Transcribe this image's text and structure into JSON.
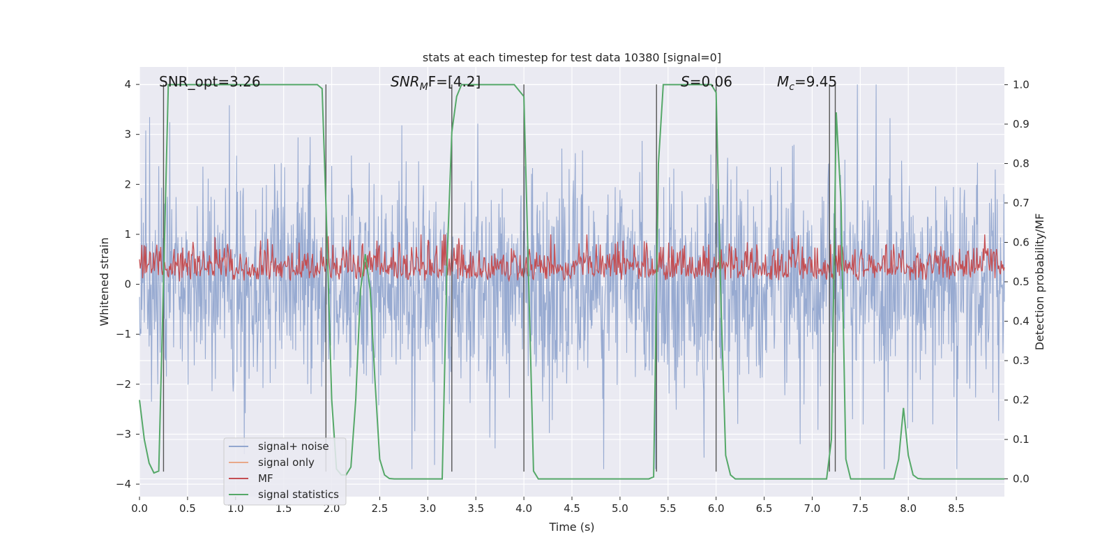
{
  "chart_data": {
    "type": "line",
    "title": "stats at each timestep for test data 10380 [signal=0]",
    "xlabel": "Time (s)",
    "ylabel": "Whitened strain",
    "y2label": "Detection probability/MF",
    "xlim": [
      0.0,
      9.0
    ],
    "ylim": [
      -4.25,
      4.35
    ],
    "y2lim": [
      -0.045,
      1.045
    ],
    "xticks": [
      0.0,
      0.5,
      1.0,
      1.5,
      2.0,
      2.5,
      3.0,
      3.5,
      4.0,
      4.5,
      5.0,
      5.5,
      6.0,
      6.5,
      7.0,
      7.5,
      8.0,
      8.5
    ],
    "xtick_labels": [
      "0.0",
      "0.5",
      "1.0",
      "1.5",
      "2.0",
      "2.5",
      "3.0",
      "3.5",
      "4.0",
      "4.5",
      "5.0",
      "5.5",
      "6.0",
      "6.5",
      "7.0",
      "7.5",
      "8.0",
      "8.5"
    ],
    "yticks": [
      -4,
      -3,
      -2,
      -1,
      0,
      1,
      2,
      3,
      4
    ],
    "ytick_labels": [
      "−4",
      "−3",
      "−2",
      "−1",
      "0",
      "1",
      "2",
      "3",
      "4"
    ],
    "y2ticks": [
      0.0,
      0.1,
      0.2,
      0.3,
      0.4,
      0.5,
      0.6,
      0.7,
      0.8,
      0.9,
      1.0
    ],
    "y2tick_labels": [
      "0.0",
      "0.1",
      "0.2",
      "0.3",
      "0.4",
      "0.5",
      "0.6",
      "0.7",
      "0.8",
      "0.9",
      "1.0"
    ],
    "grid": true,
    "legend_position": "lower-left",
    "annotations": {
      "snr_opt": "SNR_opt=3.26",
      "snr_mf": "SNR",
      "snr_mf_sub": "M",
      "snr_mf_tail": "F=[4.2]",
      "s_stat": "S",
      "s_tail": "=0.06",
      "mc": "M",
      "mc_sub": "c",
      "mc_tail": "=9.45"
    },
    "series": [
      {
        "name": "signal+ noise",
        "axis": "left",
        "color": "#92a6cf",
        "description_values": {
          "typical_range": [
            -2.5,
            2.5
          ],
          "max_peaks": 4.0,
          "min_troughs": -3.7,
          "samples_per_second": 200
        }
      },
      {
        "name": "signal only",
        "axis": "left",
        "color": "#e8a889",
        "values": []
      },
      {
        "name": "MF",
        "axis": "right",
        "color": "#c44e52",
        "description_values": {
          "typical_range": [
            0.5,
            0.62
          ],
          "min": 0.49,
          "max": 0.62
        }
      },
      {
        "name": "signal statistics",
        "axis": "right",
        "color": "#55a868",
        "x": [
          0.0,
          0.05,
          0.1,
          0.15,
          0.2,
          0.25,
          0.3,
          0.5,
          1.0,
          1.5,
          1.85,
          1.9,
          1.95,
          2.0,
          2.05,
          2.1,
          2.15,
          2.2,
          2.25,
          2.3,
          2.35,
          2.4,
          2.45,
          2.5,
          2.55,
          2.6,
          2.65,
          2.7,
          2.75,
          3.0,
          3.15,
          3.2,
          3.25,
          3.3,
          3.35,
          3.5,
          3.9,
          4.0,
          4.05,
          4.1,
          4.15,
          4.5,
          5.0,
          5.3,
          5.35,
          5.4,
          5.45,
          5.5,
          5.95,
          6.0,
          6.05,
          6.1,
          6.15,
          6.2,
          6.25,
          6.5,
          7.0,
          7.1,
          7.15,
          7.2,
          7.25,
          7.3,
          7.35,
          7.4,
          7.45,
          7.8,
          7.85,
          7.9,
          7.95,
          8.0,
          8.05,
          8.1,
          8.15,
          8.2,
          8.5,
          9.0
        ],
        "values": [
          0.2,
          0.1,
          0.04,
          0.015,
          0.02,
          0.5,
          1.0,
          1.0,
          1.0,
          1.0,
          1.0,
          0.99,
          0.62,
          0.2,
          0.025,
          0.01,
          0.01,
          0.03,
          0.2,
          0.48,
          0.57,
          0.48,
          0.25,
          0.05,
          0.01,
          0.001,
          0.0,
          0.0,
          0.0,
          0.0,
          0.0,
          0.55,
          0.88,
          0.97,
          1.0,
          1.0,
          1.0,
          0.97,
          0.5,
          0.02,
          0.0,
          0.0,
          0.0,
          0.0,
          0.005,
          0.8,
          1.0,
          1.0,
          1.0,
          0.98,
          0.45,
          0.06,
          0.01,
          0.0,
          0.0,
          0.0,
          0.0,
          0.0,
          0.0,
          0.1,
          0.93,
          0.7,
          0.05,
          0.0,
          0.0,
          0.0,
          0.0,
          0.05,
          0.18,
          0.06,
          0.01,
          0.001,
          0.0,
          0.0,
          0.0,
          0.0
        ]
      }
    ],
    "vertical_markers": {
      "color": "#555555",
      "x": [
        0.25,
        1.94,
        3.25,
        4.0,
        5.38,
        6.0,
        7.18,
        7.24
      ],
      "y_range": [
        -3.75,
        4.0
      ]
    }
  }
}
